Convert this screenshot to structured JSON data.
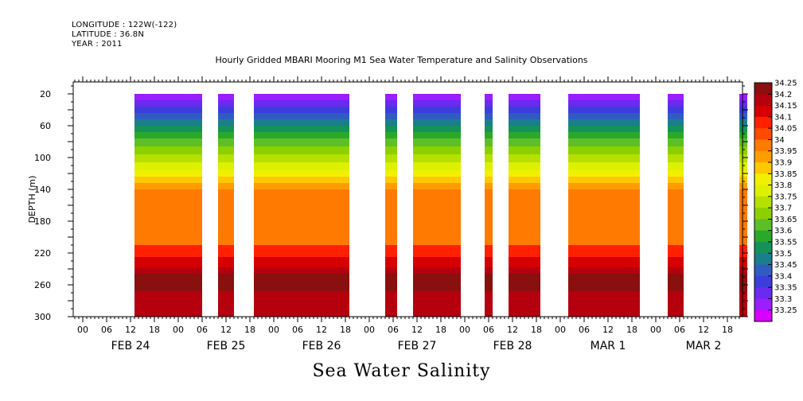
{
  "header": {
    "longitude": "LONGITUDE : 122W(-122)",
    "latitude": "LATITUDE : 36.8N",
    "year": "YEAR : 2011"
  },
  "chart_data": {
    "type": "heatmap",
    "title": "Hourly Gridded MBARI Mooring M1 Sea Water Temperature and Salinity Observations",
    "bottom_title": "Sea Water Salinity",
    "ylabel": "DEPTH (m)",
    "ylim": [
      300,
      5
    ],
    "y_ticks": [
      20,
      60,
      100,
      140,
      180,
      220,
      260,
      300
    ],
    "x_start": "2011-02-24T00:00",
    "x_end": "2011-03-02T23:00",
    "hour_ticks": [
      "00",
      "06",
      "12",
      "18",
      "00",
      "06",
      "12",
      "18",
      "00",
      "06",
      "12",
      "18",
      "00",
      "06",
      "12",
      "18",
      "00",
      "06",
      "12",
      "18",
      "00",
      "06",
      "12",
      "18",
      "00",
      "06",
      "12",
      "18"
    ],
    "day_labels": [
      "FEB 24",
      "FEB 25",
      "FEB 26",
      "FEB 27",
      "FEB 28",
      "MAR  1",
      "MAR  2"
    ],
    "data_segments": [
      {
        "start": "2011-02-24T13:00",
        "end": "2011-02-25T06:00"
      },
      {
        "start": "2011-02-25T10:00",
        "end": "2011-02-25T14:00"
      },
      {
        "start": "2011-02-25T19:00",
        "end": "2011-02-26T19:00"
      },
      {
        "start": "2011-02-27T04:00",
        "end": "2011-02-27T07:00"
      },
      {
        "start": "2011-02-27T11:00",
        "end": "2011-02-27T23:00"
      },
      {
        "start": "2011-02-28T05:00",
        "end": "2011-02-28T07:00"
      },
      {
        "start": "2011-02-28T11:00",
        "end": "2011-02-28T19:00"
      },
      {
        "start": "2011-03-01T02:00",
        "end": "2011-03-01T20:00"
      },
      {
        "start": "2011-03-02T03:00",
        "end": "2011-03-02T07:00"
      },
      {
        "start": "2011-03-02T21:00",
        "end": "2011-03-02T23:00"
      }
    ],
    "salinity_profile": [
      {
        "depth": 20,
        "value": 33.28
      },
      {
        "depth": 28,
        "value": 33.33
      },
      {
        "depth": 36,
        "value": 33.38
      },
      {
        "depth": 44,
        "value": 33.43
      },
      {
        "depth": 52,
        "value": 33.48
      },
      {
        "depth": 60,
        "value": 33.53
      },
      {
        "depth": 68,
        "value": 33.58
      },
      {
        "depth": 76,
        "value": 33.63
      },
      {
        "depth": 86,
        "value": 33.68
      },
      {
        "depth": 96,
        "value": 33.73
      },
      {
        "depth": 106,
        "value": 33.78
      },
      {
        "depth": 116,
        "value": 33.83
      },
      {
        "depth": 124,
        "value": 33.88
      },
      {
        "depth": 132,
        "value": 33.93
      },
      {
        "depth": 140,
        "value": 33.98
      },
      {
        "depth": 150,
        "value": 34.02
      },
      {
        "depth": 210,
        "value": 34.08
      },
      {
        "depth": 225,
        "value": 34.13
      },
      {
        "depth": 238,
        "value": 34.18
      },
      {
        "depth": 246,
        "value": 34.23
      },
      {
        "depth": 262,
        "value": 34.23
      },
      {
        "depth": 268,
        "value": 34.18
      },
      {
        "depth": 300,
        "value": 34.16
      }
    ],
    "colorbar": {
      "labels": [
        "34.25",
        "34.2",
        "34.15",
        "34.1",
        "34.05",
        "34",
        "33.95",
        "33.9",
        "33.85",
        "33.8",
        "33.75",
        "33.7",
        "33.65",
        "33.6",
        "33.55",
        "33.5",
        "33.45",
        "33.4",
        "33.35",
        "33.3",
        "33.25"
      ],
      "colors": [
        "#8a0f0f",
        "#b5000d",
        "#d60000",
        "#ff2000",
        "#ff4a00",
        "#ff7a00",
        "#ff9c00",
        "#ffc800",
        "#f0f000",
        "#ddf000",
        "#b5e000",
        "#8dd000",
        "#5cbf28",
        "#2aa82a",
        "#14925a",
        "#1a7e8c",
        "#2f5cc0",
        "#3d3ddc",
        "#6a2af0",
        "#9a1eff",
        "#d800ff"
      ]
    }
  }
}
